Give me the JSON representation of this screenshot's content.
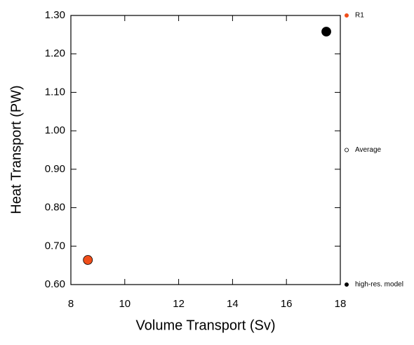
{
  "chart_data": {
    "type": "scatter",
    "x_label": "Volume Transport (Sv)",
    "y_label": "Heat Transport (PW)",
    "xlim": [
      8,
      18
    ],
    "xticks": [
      8,
      10,
      12,
      14,
      16,
      18
    ],
    "ylim": [
      0.6,
      1.3
    ],
    "yticks": [
      {
        "value": 0.6,
        "label": "0.60"
      },
      {
        "value": 0.7,
        "label": "0.70"
      },
      {
        "value": 0.8,
        "label": "0.80"
      },
      {
        "value": 0.9,
        "label": "0.90"
      },
      {
        "value": 1.0,
        "label": "1.00"
      },
      {
        "value": 1.1,
        "label": "1.10"
      },
      {
        "value": 1.2,
        "label": "1.20"
      },
      {
        "value": 1.3,
        "label": "1.30"
      }
    ],
    "series": [
      {
        "name": "R1",
        "color": "#f04e1a",
        "marker": "filled",
        "x": [
          8.63
        ],
        "values": [
          0.664
        ]
      },
      {
        "name": "Average",
        "color": "#000000",
        "marker": "open",
        "x": [],
        "values": []
      },
      {
        "name": "high-res. model",
        "color": "#000000",
        "marker": "filled",
        "x": [
          17.48
        ],
        "values": [
          1.258
        ]
      }
    ]
  }
}
